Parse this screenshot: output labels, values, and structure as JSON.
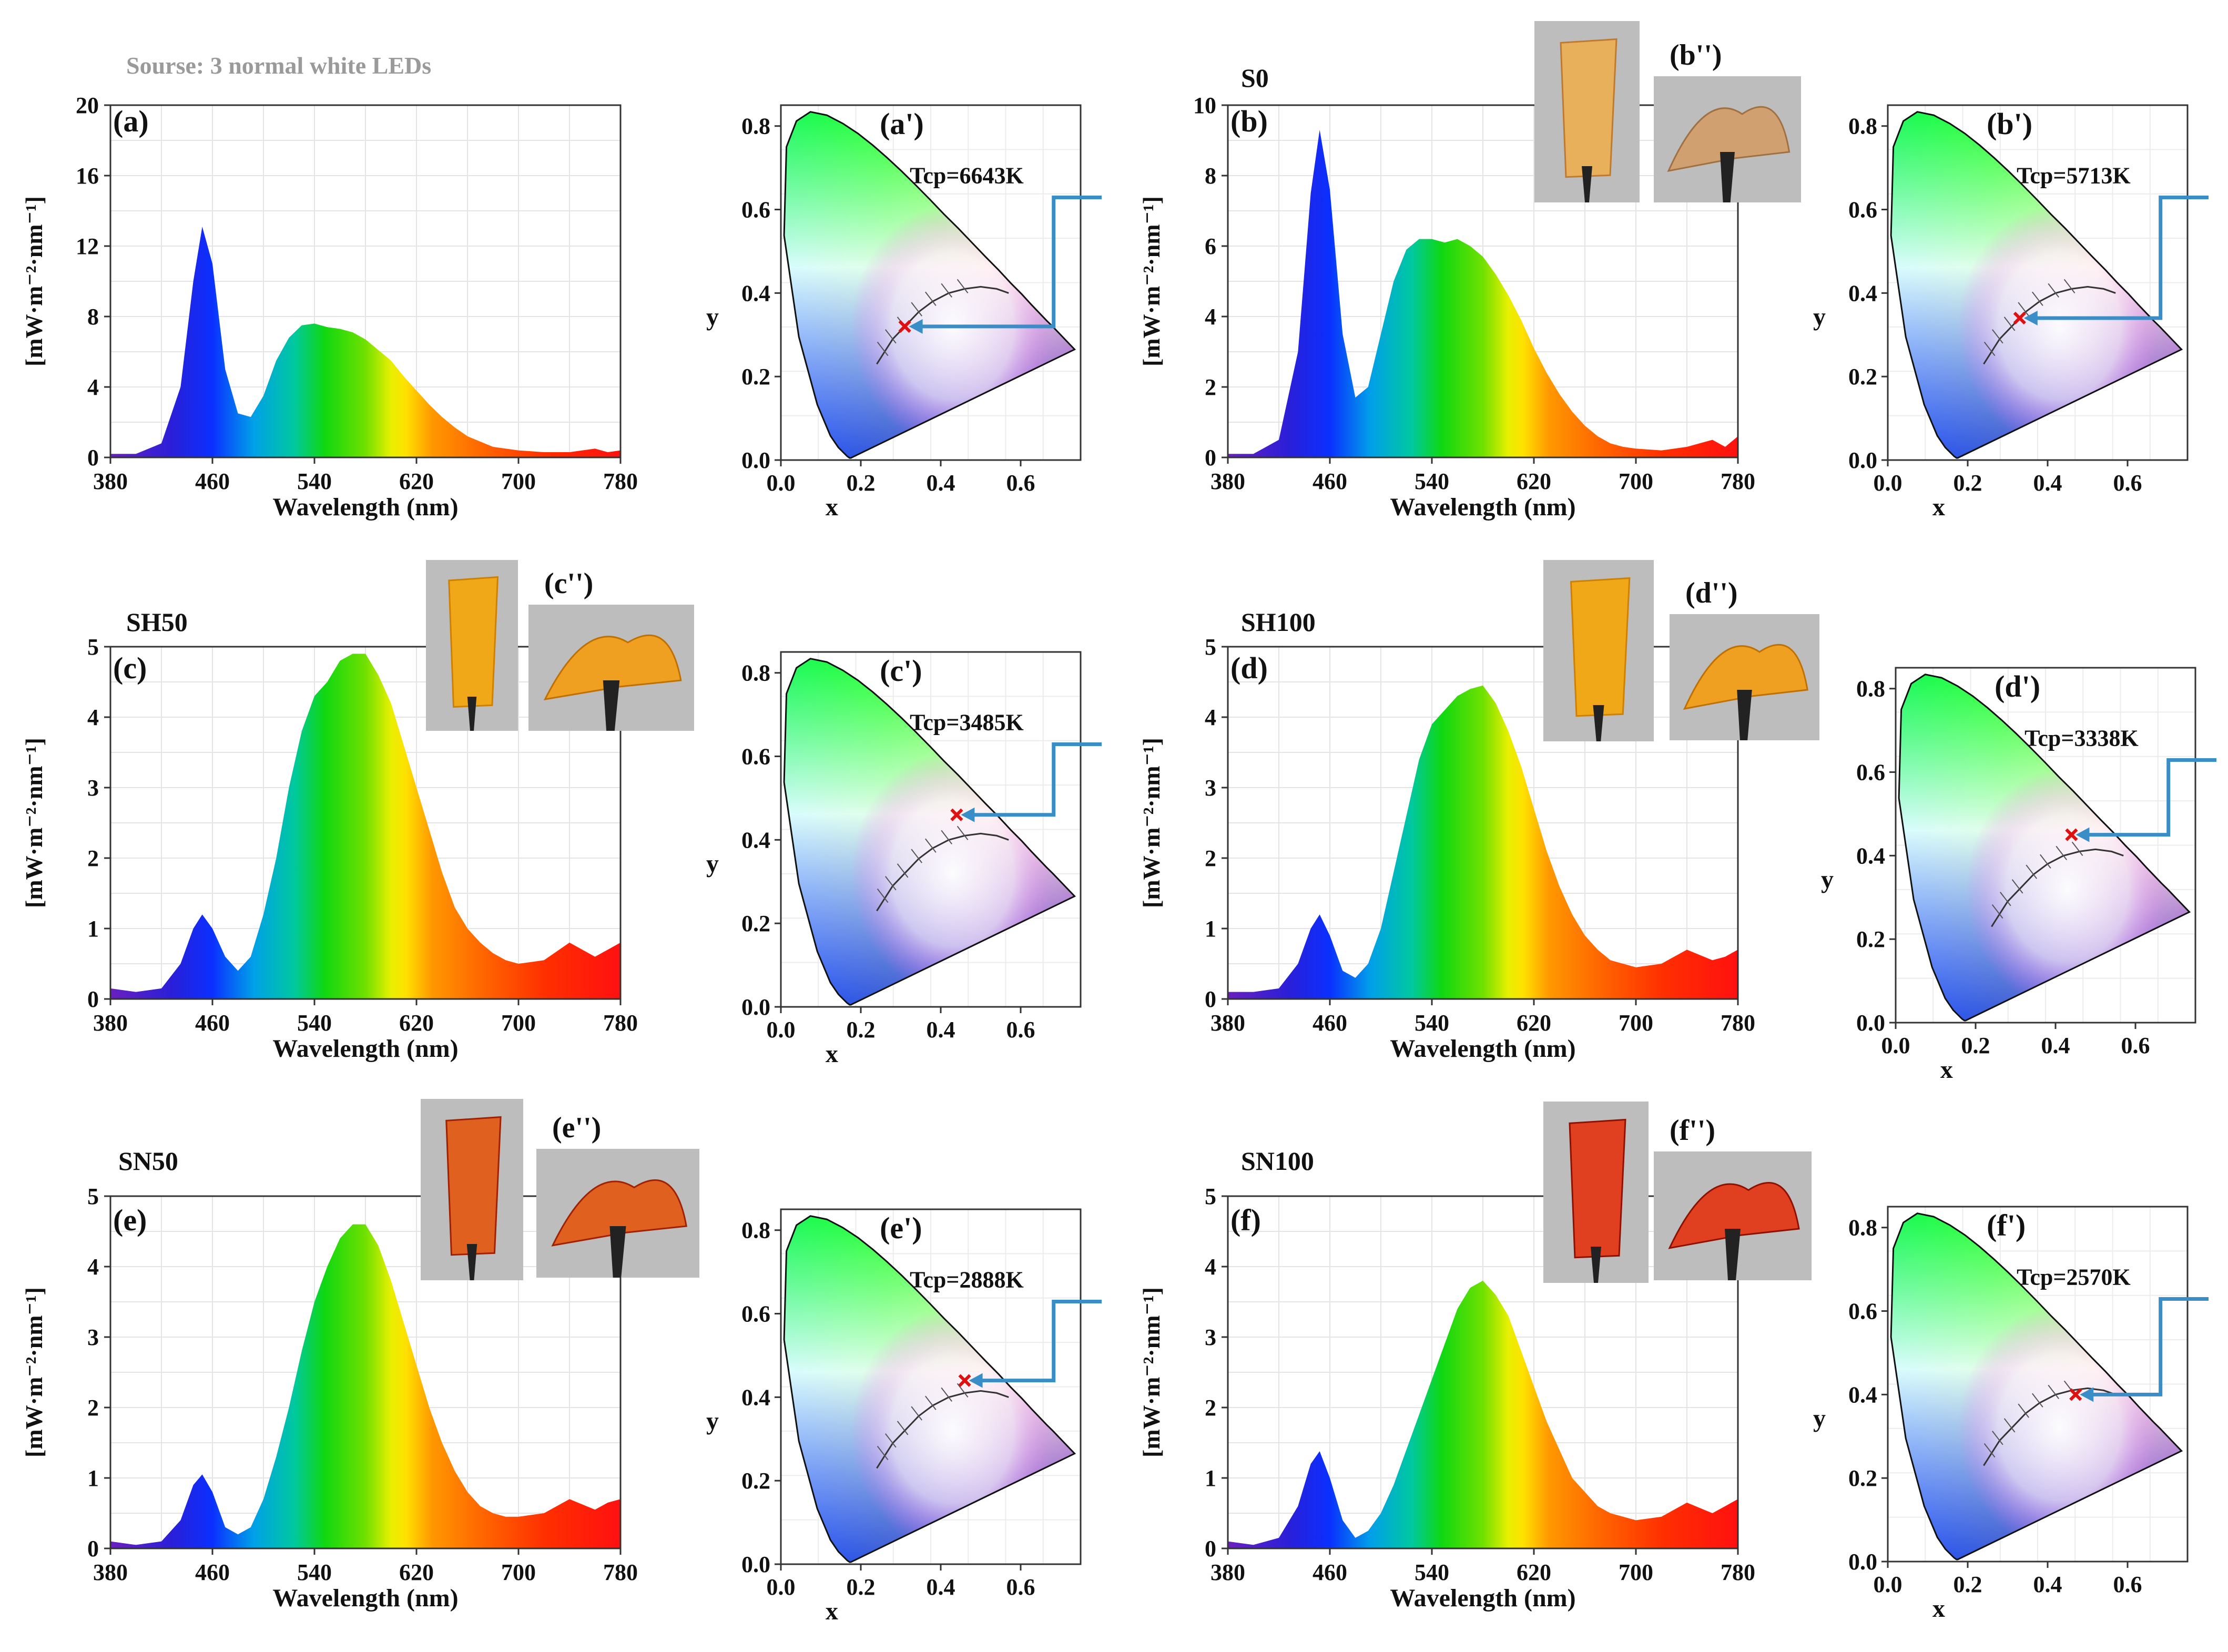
{
  "source_label": "Sourse: 3 normal white LEDs",
  "chart_data": [
    {
      "id": "a",
      "type": "area",
      "panel_label": "(a)",
      "sample_label": "",
      "xlabel": "Wavelength (nm)",
      "ylabel": "[mW·m⁻²·nm⁻¹]",
      "xlim": [
        380,
        780
      ],
      "ylim": [
        0,
        20
      ],
      "xticks": [
        "380",
        "460",
        "540",
        "620",
        "700",
        "780"
      ],
      "yticks": [
        "0",
        "4",
        "8",
        "12",
        "16",
        "20"
      ],
      "x": [
        380,
        400,
        420,
        435,
        445,
        452,
        460,
        470,
        480,
        490,
        500,
        510,
        520,
        530,
        540,
        550,
        560,
        570,
        580,
        590,
        600,
        610,
        620,
        630,
        640,
        650,
        660,
        670,
        680,
        690,
        700,
        720,
        740,
        760,
        770,
        780
      ],
      "y": [
        0.2,
        0.2,
        0.8,
        4,
        10,
        13.1,
        11,
        5,
        2.5,
        2.3,
        3.5,
        5.5,
        6.8,
        7.5,
        7.6,
        7.4,
        7.3,
        7.1,
        6.7,
        6.1,
        5.5,
        4.6,
        3.8,
        3.0,
        2.3,
        1.7,
        1.2,
        0.9,
        0.6,
        0.5,
        0.4,
        0.3,
        0.3,
        0.5,
        0.3,
        0.4
      ]
    },
    {
      "id": "b",
      "type": "area",
      "panel_label": "(b)",
      "sample_label": "S0",
      "xlabel": "Wavelength (nm)",
      "ylabel": "[mW·m⁻²·nm⁻¹]",
      "xlim": [
        380,
        780
      ],
      "ylim": [
        0,
        10
      ],
      "xticks": [
        "380",
        "460",
        "540",
        "620",
        "700",
        "780"
      ],
      "yticks": [
        "0",
        "2",
        "4",
        "6",
        "8",
        "10"
      ],
      "photo_label": "(b'')",
      "x": [
        380,
        400,
        420,
        435,
        445,
        452,
        460,
        470,
        480,
        490,
        500,
        510,
        520,
        530,
        540,
        550,
        560,
        570,
        580,
        590,
        600,
        610,
        620,
        630,
        640,
        650,
        660,
        670,
        680,
        690,
        700,
        720,
        740,
        760,
        770,
        780
      ],
      "y": [
        0.1,
        0.1,
        0.5,
        3,
        7.5,
        9.3,
        7.6,
        3.5,
        1.7,
        2.0,
        3.5,
        5.0,
        5.9,
        6.2,
        6.2,
        6.1,
        6.2,
        6.0,
        5.7,
        5.2,
        4.6,
        3.9,
        3.1,
        2.4,
        1.8,
        1.3,
        0.9,
        0.6,
        0.4,
        0.3,
        0.25,
        0.2,
        0.3,
        0.5,
        0.3,
        0.6
      ]
    },
    {
      "id": "c",
      "type": "area",
      "panel_label": "(c)",
      "sample_label": "SH50",
      "xlabel": "Wavelength (nm)",
      "ylabel": "[mW·m⁻²·nm⁻¹]",
      "xlim": [
        380,
        780
      ],
      "ylim": [
        0,
        5
      ],
      "xticks": [
        "380",
        "460",
        "540",
        "620",
        "700",
        "780"
      ],
      "yticks": [
        "0",
        "1",
        "2",
        "3",
        "4",
        "5"
      ],
      "photo_label": "(c'')",
      "x": [
        380,
        400,
        420,
        435,
        445,
        452,
        460,
        470,
        480,
        490,
        500,
        510,
        520,
        530,
        540,
        550,
        560,
        570,
        580,
        590,
        600,
        610,
        620,
        630,
        640,
        650,
        660,
        670,
        680,
        690,
        700,
        720,
        740,
        760,
        770,
        780
      ],
      "y": [
        0.15,
        0.1,
        0.15,
        0.5,
        1.0,
        1.2,
        1.0,
        0.6,
        0.4,
        0.6,
        1.2,
        2.0,
        3.0,
        3.8,
        4.3,
        4.5,
        4.8,
        4.9,
        4.9,
        4.6,
        4.2,
        3.6,
        3.0,
        2.4,
        1.8,
        1.3,
        1.0,
        0.8,
        0.65,
        0.55,
        0.5,
        0.55,
        0.8,
        0.6,
        0.7,
        0.8
      ]
    },
    {
      "id": "d",
      "type": "area",
      "panel_label": "(d)",
      "sample_label": "SH100",
      "xlabel": "Wavelength (nm)",
      "ylabel": "[mW·m⁻²·nm⁻¹]",
      "xlim": [
        380,
        780
      ],
      "ylim": [
        0,
        5
      ],
      "xticks": [
        "380",
        "460",
        "540",
        "620",
        "700",
        "780"
      ],
      "yticks": [
        "0",
        "1",
        "2",
        "3",
        "4",
        "5"
      ],
      "photo_label": "(d'')",
      "x": [
        380,
        400,
        420,
        435,
        445,
        452,
        460,
        470,
        480,
        490,
        500,
        510,
        520,
        530,
        540,
        550,
        560,
        570,
        580,
        590,
        600,
        610,
        620,
        630,
        640,
        650,
        660,
        670,
        680,
        690,
        700,
        720,
        740,
        760,
        770,
        780
      ],
      "y": [
        0.1,
        0.1,
        0.15,
        0.5,
        1.0,
        1.2,
        0.9,
        0.4,
        0.3,
        0.5,
        1.0,
        1.8,
        2.6,
        3.4,
        3.9,
        4.1,
        4.3,
        4.4,
        4.45,
        4.2,
        3.8,
        3.3,
        2.7,
        2.1,
        1.6,
        1.2,
        0.9,
        0.7,
        0.55,
        0.5,
        0.45,
        0.5,
        0.7,
        0.55,
        0.6,
        0.7
      ]
    },
    {
      "id": "e",
      "type": "area",
      "panel_label": "(e)",
      "sample_label": "SN50",
      "xlabel": "Wavelength (nm)",
      "ylabel": "[mW·m⁻²·nm⁻¹]",
      "xlim": [
        380,
        780
      ],
      "ylim": [
        0,
        5
      ],
      "xticks": [
        "380",
        "460",
        "540",
        "620",
        "700",
        "780"
      ],
      "yticks": [
        "0",
        "1",
        "2",
        "3",
        "4",
        "5"
      ],
      "photo_label": "(e'')",
      "x": [
        380,
        400,
        420,
        435,
        445,
        452,
        460,
        470,
        480,
        490,
        500,
        510,
        520,
        530,
        540,
        550,
        560,
        570,
        580,
        590,
        600,
        610,
        620,
        630,
        640,
        650,
        660,
        670,
        680,
        690,
        700,
        720,
        740,
        760,
        770,
        780
      ],
      "y": [
        0.1,
        0.05,
        0.1,
        0.4,
        0.9,
        1.05,
        0.8,
        0.3,
        0.2,
        0.3,
        0.7,
        1.3,
        2.0,
        2.8,
        3.5,
        4.0,
        4.4,
        4.6,
        4.6,
        4.3,
        3.8,
        3.2,
        2.6,
        2.0,
        1.5,
        1.1,
        0.8,
        0.6,
        0.5,
        0.45,
        0.45,
        0.5,
        0.7,
        0.55,
        0.65,
        0.7
      ]
    },
    {
      "id": "f",
      "type": "area",
      "panel_label": "(f)",
      "sample_label": "SN100",
      "xlabel": "Wavelength (nm)",
      "ylabel": "[mW·m⁻²·nm⁻¹]",
      "xlim": [
        380,
        780
      ],
      "ylim": [
        0,
        5
      ],
      "xticks": [
        "380",
        "460",
        "540",
        "620",
        "700",
        "780"
      ],
      "yticks": [
        "0",
        "1",
        "2",
        "3",
        "4",
        "5"
      ],
      "photo_label": "(f'')",
      "x": [
        380,
        400,
        420,
        435,
        445,
        452,
        460,
        470,
        480,
        490,
        500,
        510,
        520,
        530,
        540,
        550,
        560,
        570,
        580,
        590,
        600,
        610,
        620,
        630,
        640,
        650,
        660,
        670,
        680,
        690,
        700,
        720,
        740,
        760,
        770,
        780
      ],
      "y": [
        0.1,
        0.05,
        0.15,
        0.6,
        1.2,
        1.38,
        1.0,
        0.4,
        0.15,
        0.25,
        0.5,
        0.9,
        1.4,
        1.9,
        2.4,
        2.9,
        3.4,
        3.7,
        3.8,
        3.6,
        3.3,
        2.8,
        2.3,
        1.8,
        1.4,
        1.0,
        0.8,
        0.6,
        0.5,
        0.45,
        0.4,
        0.45,
        0.65,
        0.5,
        0.6,
        0.7
      ]
    },
    {
      "id": "a2",
      "type": "scatter",
      "subtype": "cie1931",
      "panel_label": "(a')",
      "xlabel": "x",
      "ylabel": "y",
      "xlim": [
        0,
        0.75
      ],
      "ylim": [
        0,
        0.85
      ],
      "xticks": [
        "0.0",
        "0.2",
        "0.4",
        "0.6"
      ],
      "yticks": [
        "0.0",
        "0.2",
        "0.4",
        "0.6",
        "0.8"
      ],
      "tcp_label": "Tcp=6643K",
      "point": {
        "x": 0.31,
        "y": 0.32
      }
    },
    {
      "id": "b2",
      "type": "scatter",
      "subtype": "cie1931",
      "panel_label": "(b')",
      "xlabel": "x",
      "ylabel": "y",
      "xlim": [
        0,
        0.75
      ],
      "ylim": [
        0,
        0.85
      ],
      "xticks": [
        "0.0",
        "0.2",
        "0.4",
        "0.6"
      ],
      "yticks": [
        "0.0",
        "0.2",
        "0.4",
        "0.6",
        "0.8"
      ],
      "tcp_label": "Tcp=5713K",
      "point": {
        "x": 0.33,
        "y": 0.34
      }
    },
    {
      "id": "c2",
      "type": "scatter",
      "subtype": "cie1931",
      "panel_label": "(c')",
      "xlabel": "x",
      "ylabel": "y",
      "xlim": [
        0,
        0.75
      ],
      "ylim": [
        0,
        0.85
      ],
      "xticks": [
        "0.0",
        "0.2",
        "0.4",
        "0.6"
      ],
      "yticks": [
        "0.0",
        "0.2",
        "0.4",
        "0.6",
        "0.8"
      ],
      "tcp_label": "Tcp=3485K",
      "point": {
        "x": 0.44,
        "y": 0.46
      }
    },
    {
      "id": "d2",
      "type": "scatter",
      "subtype": "cie1931",
      "panel_label": "(d')",
      "xlabel": "x",
      "ylabel": "y",
      "xlim": [
        0,
        0.75
      ],
      "ylim": [
        0,
        0.85
      ],
      "xticks": [
        "0.0",
        "0.2",
        "0.4",
        "0.6"
      ],
      "yticks": [
        "0.0",
        "0.2",
        "0.4",
        "0.6",
        "0.8"
      ],
      "tcp_label": "Tcp=3338K",
      "point": {
        "x": 0.44,
        "y": 0.45
      }
    },
    {
      "id": "e2",
      "type": "scatter",
      "subtype": "cie1931",
      "panel_label": "(e')",
      "xlabel": "x",
      "ylabel": "y",
      "xlim": [
        0,
        0.75
      ],
      "ylim": [
        0,
        0.85
      ],
      "xticks": [
        "0.0",
        "0.2",
        "0.4",
        "0.6"
      ],
      "yticks": [
        "0.0",
        "0.2",
        "0.4",
        "0.6",
        "0.8"
      ],
      "tcp_label": "Tcp=2888K",
      "point": {
        "x": 0.46,
        "y": 0.44
      }
    },
    {
      "id": "f2",
      "type": "scatter",
      "subtype": "cie1931",
      "panel_label": "(f')",
      "xlabel": "x",
      "ylabel": "y",
      "xlim": [
        0,
        0.75
      ],
      "ylim": [
        0,
        0.85
      ],
      "xticks": [
        "0.0",
        "0.2",
        "0.4",
        "0.6"
      ],
      "yticks": [
        "0.0",
        "0.2",
        "0.4",
        "0.6",
        "0.8"
      ],
      "tcp_label": "Tcp=2570K",
      "point": {
        "x": 0.47,
        "y": 0.4
      }
    }
  ]
}
